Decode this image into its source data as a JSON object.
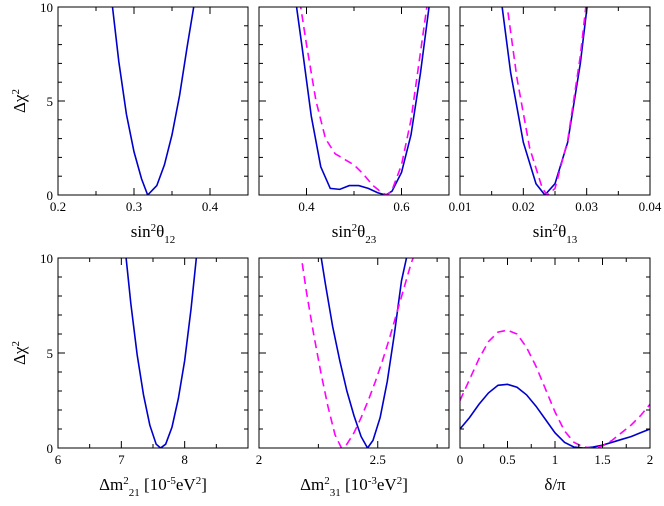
{
  "colors": {
    "solid": "#0000cc",
    "dashed": "#ff00ff",
    "axis": "#000000"
  },
  "chart_data": [
    {
      "type": "line",
      "panel": "sin2theta12",
      "xlabel": "sin²θ12",
      "ylabel": "Δχ²",
      "xlim": [
        0.2,
        0.45
      ],
      "ylim": [
        0,
        10
      ],
      "xticks": [
        "0.2",
        "0.3",
        "0.4"
      ],
      "xtick_values": [
        0.2,
        0.3,
        0.4
      ],
      "yticks": [
        "0",
        "5",
        "10"
      ],
      "ytick_values": [
        0,
        5,
        10
      ],
      "series": [
        {
          "name": "solid",
          "style": "solid",
          "x": [
            0.27,
            0.28,
            0.29,
            0.3,
            0.31,
            0.318,
            0.33,
            0.34,
            0.35,
            0.36,
            0.37,
            0.381
          ],
          "y": [
            10.6,
            7.1,
            4.3,
            2.3,
            0.85,
            0.0,
            0.5,
            1.6,
            3.2,
            5.3,
            7.9,
            10.6
          ]
        }
      ]
    },
    {
      "type": "line",
      "panel": "sin2theta23",
      "xlabel": "sin²θ23",
      "ylabel": "",
      "xlim": [
        0.3,
        0.7
      ],
      "ylim": [
        0,
        10
      ],
      "xticks": [
        "0.4",
        "0.6"
      ],
      "xtick_values": [
        0.4,
        0.6
      ],
      "yticks": [],
      "ytick_values": [
        0,
        5,
        10
      ],
      "series": [
        {
          "name": "solid",
          "style": "solid",
          "x": [
            0.378,
            0.39,
            0.41,
            0.43,
            0.45,
            0.47,
            0.49,
            0.51,
            0.53,
            0.55,
            0.567,
            0.58,
            0.6,
            0.62,
            0.64,
            0.66
          ],
          "y": [
            10.2,
            8.0,
            4.2,
            1.5,
            0.35,
            0.3,
            0.5,
            0.5,
            0.35,
            0.12,
            0.0,
            0.2,
            1.2,
            3.2,
            6.5,
            10.4
          ]
        },
        {
          "name": "dashed",
          "style": "dashed",
          "x": [
            0.386,
            0.4,
            0.42,
            0.44,
            0.46,
            0.48,
            0.5,
            0.52,
            0.54,
            0.56,
            0.57,
            0.58,
            0.6,
            0.62,
            0.64,
            0.655
          ],
          "y": [
            10.3,
            8.0,
            5.0,
            3.0,
            2.2,
            1.9,
            1.6,
            1.1,
            0.5,
            0.1,
            0.0,
            0.25,
            1.6,
            4.0,
            7.6,
            10.3
          ]
        }
      ]
    },
    {
      "type": "line",
      "panel": "sin2theta13",
      "xlabel": "sin²θ13",
      "ylabel": "",
      "xlim": [
        0.01,
        0.04
      ],
      "ylim": [
        0,
        10
      ],
      "xticks": [
        "0.01",
        "0.02",
        "0.03",
        "0.04"
      ],
      "xtick_values": [
        0.01,
        0.02,
        0.03,
        0.04
      ],
      "yticks": [],
      "ytick_values": [
        0,
        5,
        10
      ],
      "series": [
        {
          "name": "solid",
          "style": "solid",
          "x": [
            0.0165,
            0.018,
            0.02,
            0.022,
            0.0234,
            0.025,
            0.027,
            0.029,
            0.0302
          ],
          "y": [
            10.4,
            6.5,
            2.8,
            0.6,
            0.0,
            0.6,
            2.8,
            7.0,
            10.4
          ]
        },
        {
          "name": "dashed",
          "style": "dashed",
          "x": [
            0.0173,
            0.019,
            0.021,
            0.023,
            0.0238,
            0.025,
            0.027,
            0.029,
            0.03
          ],
          "y": [
            10.4,
            6.2,
            2.5,
            0.35,
            0.0,
            0.35,
            2.9,
            7.4,
            10.4
          ]
        }
      ]
    },
    {
      "type": "line",
      "panel": "dm21",
      "xlabel": "Δm²21 [10⁻⁵eV²]",
      "ylabel": "Δχ²",
      "xlim": [
        6,
        9
      ],
      "ylim": [
        0,
        10
      ],
      "xticks": [
        "6",
        "7",
        "8"
      ],
      "xtick_values": [
        6,
        7,
        8
      ],
      "yticks": [
        "0",
        "5",
        "10"
      ],
      "ytick_values": [
        0,
        5,
        10
      ],
      "series": [
        {
          "name": "solid",
          "style": "solid",
          "x": [
            7.06,
            7.15,
            7.25,
            7.35,
            7.45,
            7.55,
            7.62,
            7.7,
            7.8,
            7.9,
            8.0,
            8.1,
            8.2
          ],
          "y": [
            10.5,
            7.6,
            4.9,
            2.8,
            1.2,
            0.2,
            0.0,
            0.2,
            1.1,
            2.6,
            4.6,
            7.3,
            10.5
          ]
        }
      ]
    },
    {
      "type": "line",
      "panel": "dm31",
      "xlabel": "Δm²31 [10⁻³eV²]",
      "ylabel": "",
      "xlim": [
        2,
        2.8
      ],
      "ylim": [
        0,
        10
      ],
      "xticks": [
        "2",
        "2.5"
      ],
      "xtick_values": [
        2,
        2.5
      ],
      "yticks": [],
      "ytick_values": [
        0,
        5,
        10
      ],
      "series": [
        {
          "name": "solid",
          "style": "solid",
          "x": [
            2.257,
            2.28,
            2.31,
            2.34,
            2.37,
            2.4,
            2.43,
            2.457,
            2.48,
            2.51,
            2.54,
            2.57,
            2.6,
            2.628
          ],
          "y": [
            10.4,
            8.6,
            6.4,
            4.6,
            3.0,
            1.7,
            0.6,
            0.0,
            0.4,
            1.6,
            3.5,
            6.0,
            8.8,
            10.4
          ]
        },
        {
          "name": "dashed",
          "style": "dashed",
          "x": [
            2.174,
            2.2,
            2.23,
            2.26,
            2.29,
            2.32,
            2.347,
            2.37,
            2.4,
            2.43,
            2.46,
            2.49,
            2.52,
            2.55,
            2.58,
            2.61,
            2.64,
            2.661
          ],
          "y": [
            10.4,
            8.2,
            6.0,
            4.0,
            2.2,
            0.7,
            0.0,
            0.2,
            0.8,
            1.6,
            2.5,
            3.5,
            4.6,
            5.8,
            7.1,
            8.4,
            9.7,
            10.4
          ]
        }
      ]
    },
    {
      "type": "line",
      "panel": "delta",
      "xlabel": "δ/π",
      "ylabel": "",
      "xlim": [
        0,
        2
      ],
      "ylim": [
        0,
        10
      ],
      "xticks": [
        "0",
        "0.5",
        "1",
        "1.5",
        "2"
      ],
      "xtick_values": [
        0,
        0.5,
        1,
        1.5,
        2
      ],
      "yticks": [],
      "ytick_values": [
        0,
        5,
        10
      ],
      "series": [
        {
          "name": "solid",
          "style": "solid",
          "x": [
            0.0,
            0.1,
            0.2,
            0.3,
            0.4,
            0.5,
            0.6,
            0.7,
            0.8,
            0.9,
            1.0,
            1.1,
            1.2,
            1.3,
            1.4,
            1.5,
            1.6,
            1.7,
            1.8,
            1.9,
            2.0
          ],
          "y": [
            1.0,
            1.6,
            2.3,
            2.9,
            3.3,
            3.35,
            3.2,
            2.8,
            2.2,
            1.5,
            0.8,
            0.3,
            0.05,
            0.0,
            0.05,
            0.15,
            0.3,
            0.45,
            0.6,
            0.8,
            1.0
          ]
        },
        {
          "name": "dashed",
          "style": "dashed",
          "x": [
            0.0,
            0.1,
            0.2,
            0.3,
            0.4,
            0.5,
            0.6,
            0.7,
            0.8,
            0.9,
            1.0,
            1.1,
            1.2,
            1.3,
            1.4,
            1.5,
            1.6,
            1.7,
            1.8,
            1.9,
            2.0
          ],
          "y": [
            2.5,
            3.6,
            4.7,
            5.6,
            6.1,
            6.2,
            6.0,
            5.3,
            4.3,
            3.1,
            1.9,
            0.9,
            0.3,
            0.05,
            0.0,
            0.1,
            0.4,
            0.8,
            1.2,
            1.7,
            2.3
          ]
        }
      ]
    }
  ]
}
